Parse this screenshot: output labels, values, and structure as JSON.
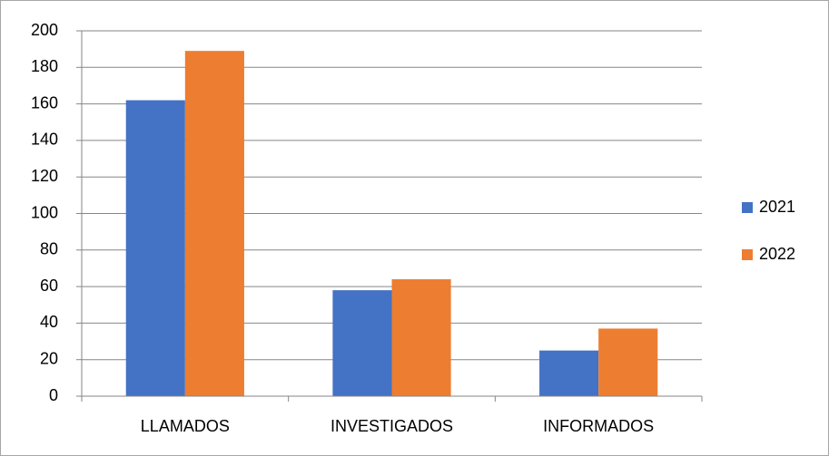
{
  "chart_data": {
    "type": "bar",
    "categories": [
      "LLAMADOS",
      "INVESTIGADOS",
      "INFORMADOS"
    ],
    "series": [
      {
        "name": "2021",
        "color": "#4472c4",
        "values": [
          162,
          58,
          25
        ]
      },
      {
        "name": "2022",
        "color": "#ed7d31",
        "values": [
          189,
          64,
          37
        ]
      }
    ],
    "ylim": [
      0,
      200
    ],
    "yticks": [
      0,
      20,
      40,
      60,
      80,
      100,
      120,
      140,
      160,
      180,
      200
    ],
    "grid": true,
    "legend": "right"
  }
}
